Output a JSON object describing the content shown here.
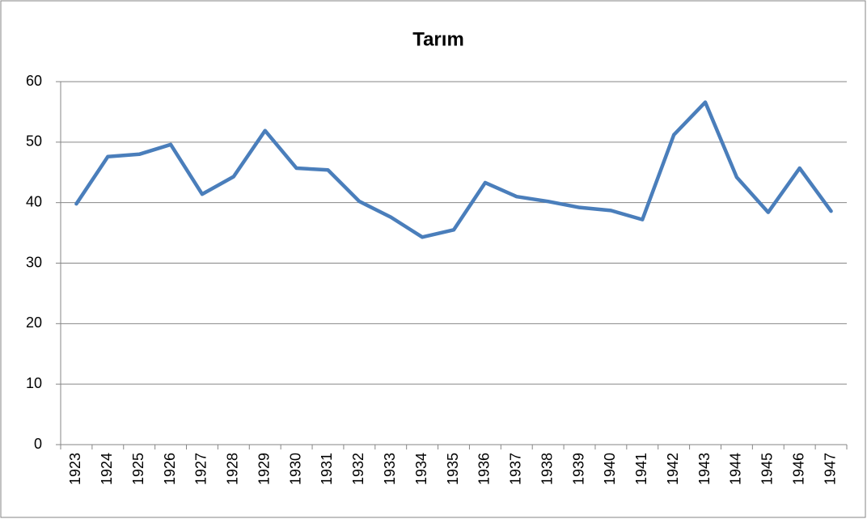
{
  "chart_data": {
    "type": "line",
    "title": "Tarım",
    "categories": [
      "1923",
      "1924",
      "1925",
      "1926",
      "1927",
      "1928",
      "1929",
      "1930",
      "1931",
      "1932",
      "1933",
      "1934",
      "1935",
      "1936",
      "1937",
      "1938",
      "1939",
      "1940",
      "1941",
      "1942",
      "1943",
      "1944",
      "1945",
      "1946",
      "1947"
    ],
    "values": [
      39.8,
      47.6,
      48.0,
      49.6,
      41.4,
      44.3,
      51.9,
      45.7,
      45.4,
      40.2,
      37.6,
      34.3,
      35.5,
      43.3,
      41.0,
      40.2,
      39.2,
      38.7,
      37.2,
      51.2,
      56.6,
      44.2,
      38.4,
      45.7,
      38.6
    ],
    "color": "#4a7ebb",
    "ylim": [
      0,
      60
    ],
    "yticks": [
      0,
      10,
      20,
      30,
      40,
      50,
      60
    ],
    "grid": true
  }
}
